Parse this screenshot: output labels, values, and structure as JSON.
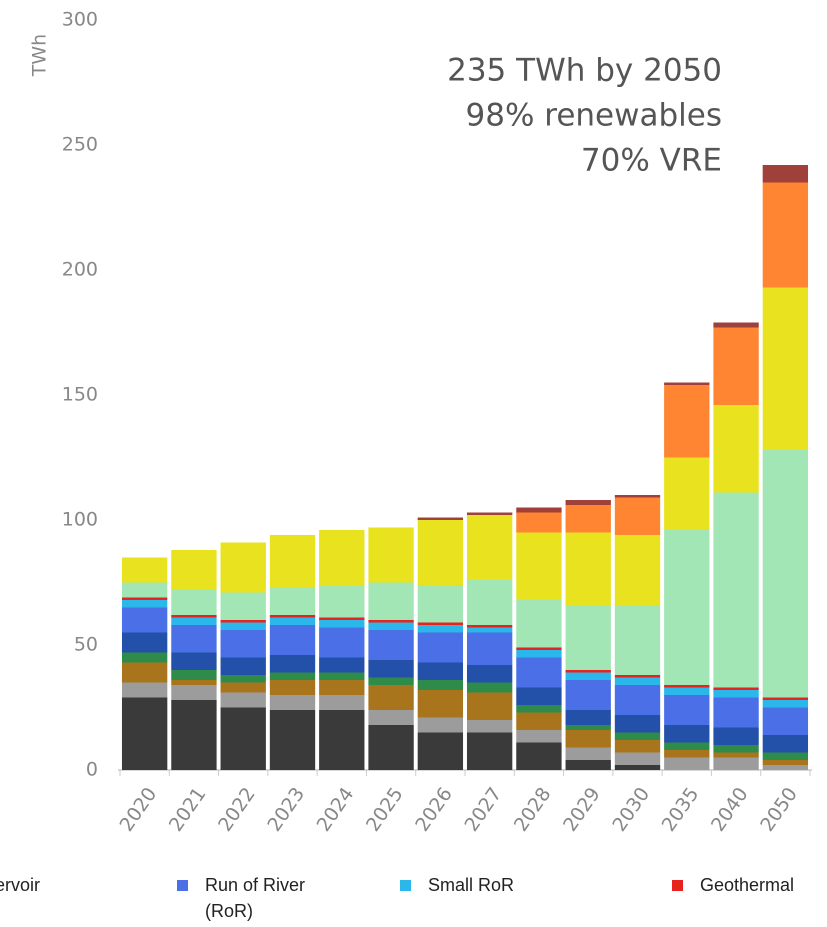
{
  "chart_data": {
    "type": "stacked-bar",
    "y_label": "TWh",
    "annotations": [
      "235 TWh by 2050",
      "98% renewables",
      "70% VRE"
    ],
    "categories": [
      "2020",
      "2021",
      "2022",
      "2023",
      "2024",
      "2025",
      "2026",
      "2027",
      "2028",
      "2029",
      "2030",
      "2035",
      "2040",
      "2050"
    ],
    "series": [
      {
        "color": "#3a3a3a",
        "values": [
          29,
          28,
          25,
          24,
          24,
          18,
          15,
          15,
          11,
          4,
          2,
          0,
          0,
          0
        ]
      },
      {
        "color": "#9c9c9c",
        "values": [
          6,
          6,
          6,
          6,
          6,
          6,
          6,
          5,
          5,
          5,
          5,
          5,
          5,
          2
        ]
      },
      {
        "color": "#a8741c",
        "values": [
          8,
          2,
          4,
          6,
          6,
          10,
          11,
          11,
          7,
          7,
          5,
          3,
          2,
          2
        ]
      },
      {
        "color": "#2e8b4a",
        "values": [
          4,
          4,
          3,
          3,
          3,
          3,
          4,
          4,
          3,
          2,
          3,
          3,
          3,
          3
        ]
      },
      {
        "name": "ervoir",
        "color": "#2350a8",
        "values": [
          8,
          7,
          7,
          7,
          6,
          7,
          7,
          7,
          7,
          6,
          7,
          7,
          7,
          7
        ]
      },
      {
        "name": "Run of River (RoR)",
        "color": "#4b6fe6",
        "values": [
          10,
          11,
          11,
          12,
          12,
          12,
          12,
          13,
          12,
          12,
          12,
          12,
          12,
          11
        ]
      },
      {
        "name": "Small RoR",
        "color": "#2bb7ea",
        "values": [
          3,
          3,
          3,
          3,
          3,
          3,
          3,
          2,
          3,
          3,
          3,
          3,
          3,
          3
        ]
      },
      {
        "name": "Geothermal",
        "color": "#e8231e",
        "values": [
          1,
          1,
          1,
          1,
          1,
          1,
          1,
          1,
          1,
          1,
          1,
          1,
          1,
          1
        ]
      },
      {
        "color": "#a2e6b5",
        "values": [
          6,
          10,
          11,
          11,
          13,
          15,
          15,
          18,
          19,
          26,
          28,
          62,
          78,
          99
        ]
      },
      {
        "color": "#e9e21f",
        "values": [
          10,
          16,
          20,
          21,
          22,
          22,
          26,
          26,
          27,
          29,
          28,
          29,
          35,
          65
        ]
      },
      {
        "color": "#ff8533",
        "values": [
          0,
          0,
          0,
          0,
          0,
          0,
          0,
          0,
          8,
          11,
          15,
          29,
          31,
          42
        ]
      },
      {
        "color": "#a0403a",
        "values": [
          0,
          0,
          0,
          0,
          0,
          0,
          1,
          1,
          2,
          2,
          1,
          1,
          2,
          7
        ]
      }
    ],
    "ylim": [
      0,
      300
    ],
    "yticks": [
      0,
      50,
      100,
      150,
      200,
      250,
      300
    ]
  }
}
